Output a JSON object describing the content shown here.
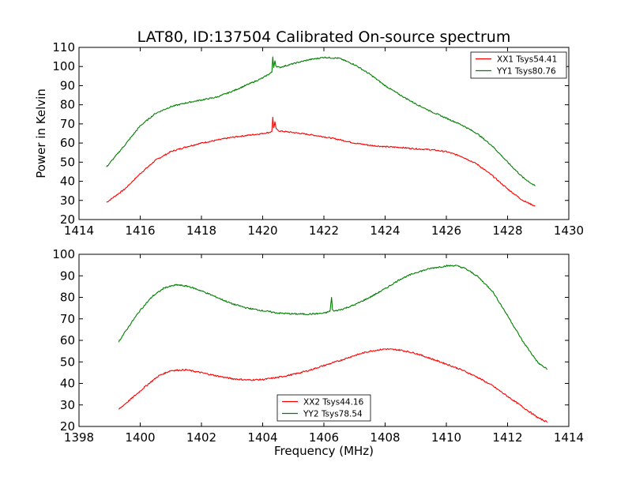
{
  "title": "LAT80, ID:137504 Calibrated On-source spectrum",
  "ylabel": "Power in Kelvin",
  "xlabel": "Frequency (MHz)",
  "colors": {
    "red": "#ff0000",
    "green": "#008000"
  },
  "chart_data": [
    {
      "type": "line",
      "title": "LAT80, ID:137504 Calibrated On-source spectrum",
      "xlabel": "",
      "ylabel": "Power in Kelvin",
      "xlim": [
        1414,
        1430
      ],
      "ylim": [
        20,
        110
      ],
      "xticks": [
        "1414",
        "1416",
        "1418",
        "1420",
        "1422",
        "1424",
        "1426",
        "1428",
        "1430"
      ],
      "yticks": [
        "20",
        "30",
        "40",
        "50",
        "60",
        "70",
        "80",
        "90",
        "100",
        "110"
      ],
      "grid": false,
      "legend_position": "top-right",
      "series": [
        {
          "name": "XX1 Tsys54.41",
          "color": "#ff0000",
          "x": [
            1414.9,
            1415.5,
            1416.0,
            1416.5,
            1417.0,
            1417.5,
            1418.0,
            1418.5,
            1419.0,
            1419.5,
            1420.0,
            1420.2,
            1420.3,
            1420.33,
            1420.36,
            1420.4,
            1420.43,
            1420.46,
            1420.55,
            1421.0,
            1421.5,
            1422.0,
            1422.5,
            1423.0,
            1423.5,
            1424.0,
            1424.5,
            1425.0,
            1425.5,
            1426.0,
            1426.5,
            1427.0,
            1427.5,
            1428.0,
            1428.5,
            1428.9
          ],
          "y": [
            29,
            36,
            44,
            51,
            55.5,
            58,
            60,
            61.5,
            63,
            64,
            65,
            65.5,
            66,
            73.5,
            68,
            71,
            68,
            67,
            66.3,
            65.5,
            64.5,
            63.3,
            61.8,
            60,
            58.8,
            58.1,
            57.7,
            57,
            56.5,
            55.5,
            53,
            49,
            43,
            36,
            30,
            27
          ]
        },
        {
          "name": "YY1 Tsys80.76",
          "color": "#008000",
          "x": [
            1414.9,
            1415.5,
            1416.0,
            1416.5,
            1417.0,
            1417.5,
            1418.0,
            1418.5,
            1419.0,
            1419.5,
            1420.0,
            1420.2,
            1420.3,
            1420.33,
            1420.36,
            1420.4,
            1420.43,
            1420.46,
            1420.55,
            1421.0,
            1421.5,
            1422.0,
            1422.5,
            1423.0,
            1423.5,
            1424.0,
            1424.5,
            1425.0,
            1425.5,
            1426.0,
            1426.5,
            1427.0,
            1427.5,
            1428.0,
            1428.5,
            1428.9
          ],
          "y": [
            47.5,
            59,
            69,
            75.5,
            79,
            81,
            82.5,
            84,
            87,
            90.5,
            94,
            96,
            97,
            105,
            99.5,
            103,
            100.5,
            100,
            99.5,
            101.5,
            103.5,
            104.8,
            104.3,
            101,
            96,
            90,
            85,
            80.5,
            76.5,
            73,
            69.5,
            65,
            58.5,
            50,
            42,
            37.5
          ]
        }
      ]
    },
    {
      "type": "line",
      "title": "",
      "xlabel": "Frequency (MHz)",
      "ylabel": "",
      "xlim": [
        1398,
        1414
      ],
      "ylim": [
        20,
        100
      ],
      "xticks": [
        "1398",
        "1400",
        "1402",
        "1404",
        "1406",
        "1408",
        "1410",
        "1412",
        "1414"
      ],
      "yticks": [
        "20",
        "30",
        "40",
        "50",
        "60",
        "70",
        "80",
        "90",
        "100"
      ],
      "grid": false,
      "legend_position": "bottom-center",
      "series": [
        {
          "name": "XX2 Tsys44.16",
          "color": "#ff0000",
          "x": [
            1399.3,
            1399.8,
            1400.2,
            1400.6,
            1401.0,
            1401.5,
            1402.0,
            1402.5,
            1403.0,
            1403.5,
            1404.0,
            1404.5,
            1405.0,
            1405.5,
            1406.0,
            1406.5,
            1407.0,
            1407.5,
            1408.0,
            1408.5,
            1409.0,
            1409.5,
            1410.0,
            1410.5,
            1411.0,
            1411.5,
            1412.0,
            1412.5,
            1413.0,
            1413.3
          ],
          "y": [
            28,
            34,
            39,
            43.5,
            46,
            46.3,
            45,
            43.5,
            42.2,
            41.6,
            41.8,
            42.8,
            44.2,
            46,
            48.3,
            50.5,
            53,
            55,
            56,
            55.5,
            54,
            51.5,
            49,
            46.3,
            43,
            39,
            34,
            29,
            24,
            22
          ]
        },
        {
          "name": "YY2 Tsys78.54",
          "color": "#008000",
          "x": [
            1399.3,
            1399.7,
            1400.0,
            1400.4,
            1400.8,
            1401.2,
            1401.6,
            1402.0,
            1402.5,
            1403.0,
            1403.5,
            1404.0,
            1404.5,
            1405.0,
            1405.5,
            1406.0,
            1406.2,
            1406.25,
            1406.28,
            1406.32,
            1406.4,
            1406.6,
            1407.0,
            1407.5,
            1408.0,
            1408.5,
            1409.0,
            1409.5,
            1410.0,
            1410.3,
            1410.6,
            1411.0,
            1411.5,
            1412.0,
            1412.5,
            1413.0,
            1413.3
          ],
          "y": [
            59.5,
            68,
            74,
            80.5,
            84.5,
            85.8,
            85,
            83,
            80,
            77,
            75,
            73.8,
            72.7,
            72.3,
            72.2,
            72.6,
            73.5,
            80,
            74.5,
            73.5,
            73.8,
            74.5,
            76.5,
            80,
            84,
            88.5,
            91.5,
            93.5,
            94.6,
            94.8,
            93.5,
            90,
            83,
            71.5,
            59.5,
            49.5,
            46.5
          ]
        }
      ]
    }
  ]
}
